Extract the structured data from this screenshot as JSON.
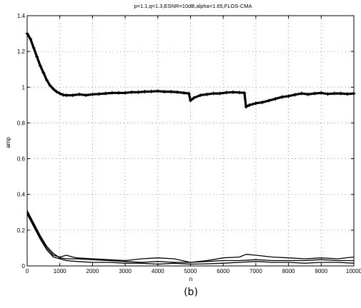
{
  "chart_data": {
    "type": "line",
    "title": "p=1.1,q=1.3,ESNR=10dB,alpha=1.65,FLOS-CMA",
    "xlabel": "n",
    "ylabel": "amp",
    "caption": "(b)",
    "xlim": [
      0,
      10000
    ],
    "ylim": [
      0,
      1.4
    ],
    "grid": true,
    "xticks": [
      0,
      1000,
      2000,
      3000,
      4000,
      5000,
      6000,
      7000,
      8000,
      9000,
      10000
    ],
    "xtick_labels": [
      "0",
      "1000",
      "2000",
      "3000",
      "4000",
      "5000",
      "6000",
      "7000",
      "8000",
      "9000",
      "10000"
    ],
    "yticks": [
      0,
      0.2,
      0.4,
      0.6,
      0.8,
      1,
      1.2,
      1.4
    ],
    "ytick_labels": [
      "0",
      "0.2",
      "0.4",
      "0.6",
      "0.8",
      "1",
      "1.2",
      "1.4"
    ],
    "series": [
      {
        "color": "#000000",
        "marker": "plus",
        "x": [
          0,
          100,
          200,
          300,
          400,
          500,
          600,
          700,
          800,
          900,
          1000,
          1100,
          1200,
          1400,
          1600,
          1800,
          2000,
          2200,
          2400,
          2600,
          2800,
          3000,
          3200,
          3400,
          3600,
          3800,
          4000,
          4200,
          4400,
          4600,
          4800,
          4950,
          5000,
          5100,
          5300,
          5500,
          5700,
          5900,
          6100,
          6300,
          6500,
          6650,
          6700,
          6800,
          7000,
          7200,
          7400,
          7600,
          7800,
          8000,
          8200,
          8400,
          8600,
          8800,
          9000,
          9200,
          9400,
          9600,
          9800,
          10000
        ],
        "y": [
          1.3,
          1.27,
          1.22,
          1.17,
          1.12,
          1.08,
          1.04,
          1.01,
          0.99,
          0.975,
          0.965,
          0.957,
          0.955,
          0.955,
          0.96,
          0.955,
          0.96,
          0.962,
          0.965,
          0.968,
          0.968,
          0.968,
          0.972,
          0.972,
          0.975,
          0.976,
          0.978,
          0.975,
          0.975,
          0.972,
          0.968,
          0.965,
          0.925,
          0.94,
          0.955,
          0.96,
          0.965,
          0.965,
          0.97,
          0.972,
          0.97,
          0.968,
          0.89,
          0.9,
          0.91,
          0.915,
          0.925,
          0.935,
          0.945,
          0.95,
          0.958,
          0.965,
          0.96,
          0.965,
          0.968,
          0.962,
          0.965,
          0.965,
          0.962,
          0.965
        ]
      },
      {
        "color": "#000000",
        "x": [
          0,
          200,
          400,
          600,
          800,
          1000,
          1200,
          1500,
          2000,
          2500,
          3000,
          3500,
          4000,
          4500,
          5000,
          5500,
          6000,
          6500,
          7000,
          7500,
          8000,
          8500,
          9000,
          9500,
          10000
        ],
        "y": [
          0.31,
          0.24,
          0.17,
          0.11,
          0.07,
          0.045,
          0.04,
          0.04,
          0.035,
          0.03,
          0.025,
          0.02,
          0.025,
          0.02,
          0.02,
          0.025,
          0.03,
          0.03,
          0.035,
          0.03,
          0.03,
          0.03,
          0.035,
          0.03,
          0.03
        ]
      },
      {
        "color": "#000000",
        "x": [
          0,
          200,
          400,
          600,
          800,
          1000,
          1200,
          1500,
          2000,
          2500,
          3000,
          3500,
          4000,
          4500,
          5000,
          5500,
          6000,
          6500,
          6700,
          7000,
          7500,
          8000,
          8500,
          9000,
          9500,
          10000
        ],
        "y": [
          0.3,
          0.23,
          0.16,
          0.1,
          0.06,
          0.05,
          0.06,
          0.045,
          0.04,
          0.035,
          0.03,
          0.04,
          0.045,
          0.04,
          0.02,
          0.03,
          0.045,
          0.05,
          0.065,
          0.06,
          0.05,
          0.045,
          0.04,
          0.045,
          0.04,
          0.05
        ]
      },
      {
        "color": "#000000",
        "x": [
          0,
          200,
          400,
          600,
          800,
          1000,
          1200,
          1500,
          2000,
          2500,
          3000,
          3500,
          4000,
          4500,
          5000,
          5500,
          6000,
          6500,
          7000,
          7500,
          8000,
          8500,
          9000,
          9500,
          10000
        ],
        "y": [
          0.29,
          0.22,
          0.15,
          0.09,
          0.05,
          0.04,
          0.03,
          0.025,
          0.02,
          0.02,
          0.015,
          0.015,
          0.01,
          0.015,
          0.01,
          0.012,
          0.015,
          0.02,
          0.025,
          0.02,
          0.02,
          0.015,
          0.02,
          0.02,
          0.015
        ]
      }
    ]
  }
}
